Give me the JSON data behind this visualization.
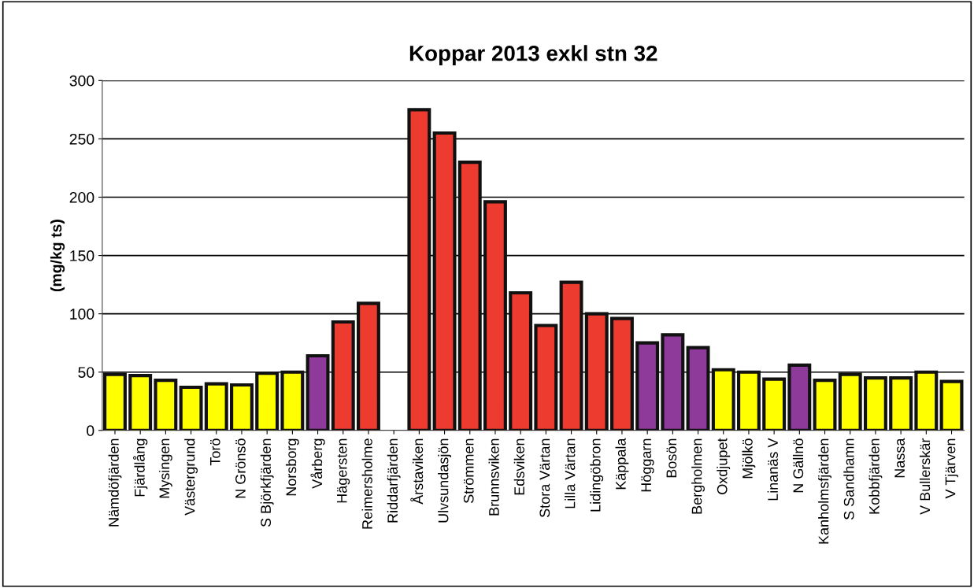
{
  "chart_data": {
    "type": "bar",
    "title": "Koppar 2013 exkl stn 32",
    "ylabel": "(mg/kg ts)",
    "categories": [
      "Nämdöfjärden",
      "Fjärdlång",
      "Mysingen",
      "Västergrund",
      "Torö",
      "N Grönsö",
      "S Björkfjärden",
      "Norsborg",
      "Vårberg",
      "Hägersten",
      "Reimersholme",
      "Riddarfjärden",
      "Årstaviken",
      "Ulvsundasjön",
      "Strömmen",
      "Brunnsviken",
      "Edsviken",
      "Stora Värtan",
      "Lilla Värtan",
      "Lidingöbron",
      "Käppala",
      "Höggarn",
      "Bosön",
      "Bergholmen",
      "Oxdjupet",
      "Mjölkö",
      "Linanäs V",
      "N Gällnö",
      "Kanholmsfjärden",
      "S Sandhamn",
      "Kobbfjärden",
      "Nassa",
      "V Bullerskär",
      "V Tjärven"
    ],
    "values": [
      48,
      47,
      43,
      37,
      40,
      39,
      49,
      50,
      64,
      93,
      109,
      null,
      275,
      255,
      230,
      196,
      118,
      90,
      127,
      100,
      96,
      75,
      82,
      71,
      52,
      50,
      44,
      56,
      43,
      48,
      45,
      45,
      50,
      42
    ],
    "colors": [
      "#ffff00",
      "#ffff00",
      "#ffff00",
      "#ffff00",
      "#ffff00",
      "#ffff00",
      "#ffff00",
      "#ffff00",
      "#8e3a9a",
      "#ee3b30",
      "#ee3b30",
      "#ee3b30",
      "#ee3b30",
      "#ee3b30",
      "#ee3b30",
      "#ee3b30",
      "#ee3b30",
      "#ee3b30",
      "#ee3b30",
      "#ee3b30",
      "#ee3b30",
      "#8e3a9a",
      "#8e3a9a",
      "#8e3a9a",
      "#ffff00",
      "#ffff00",
      "#ffff00",
      "#8e3a9a",
      "#ffff00",
      "#ffff00",
      "#ffff00",
      "#ffff00",
      "#ffff00",
      "#ffff00"
    ],
    "ylim": [
      0,
      300
    ],
    "yticks": [
      0,
      50,
      100,
      150,
      200,
      250,
      300
    ],
    "grid": "y",
    "legend": false
  }
}
